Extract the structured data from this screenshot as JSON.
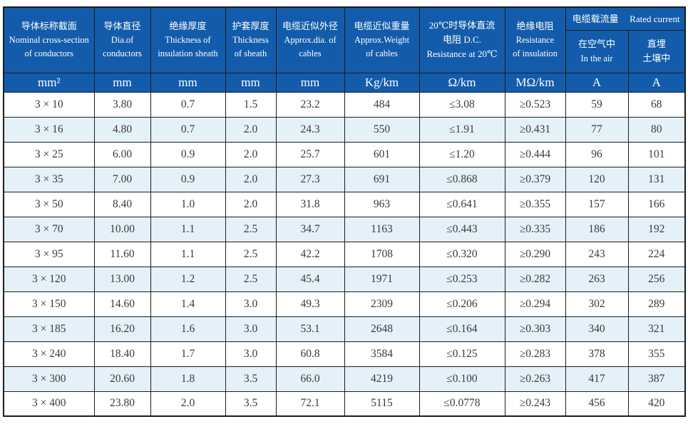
{
  "colors": {
    "header_bg": "#135CAB",
    "header_text": "#ffffff",
    "row_alt_bg": "#E4F1F9",
    "border": "#1c1c1c",
    "cell_text": "#3a3a3a"
  },
  "table": {
    "group_header": {
      "left": "电缆载流量",
      "right": "Rated current"
    },
    "columns": [
      {
        "name": "nominal-cross-section",
        "grouped": false,
        "lines": [
          "导体标称截面",
          "Nominal cross-section",
          "of conductors"
        ],
        "unit": "mm²"
      },
      {
        "name": "conductor-diameter",
        "grouped": false,
        "lines": [
          "导体直径",
          "Dia.of",
          "conductors"
        ],
        "unit": "mm"
      },
      {
        "name": "insulation-thickness",
        "grouped": false,
        "lines": [
          "绝缘厚度",
          "Thickness of",
          "insulation sheath"
        ],
        "unit": "mm"
      },
      {
        "name": "sheath-thickness",
        "grouped": false,
        "lines": [
          "护套厚度",
          "Thickness",
          "of sheath"
        ],
        "unit": "mm"
      },
      {
        "name": "approx-outer-diameter",
        "grouped": false,
        "lines": [
          "电缆近似外径",
          "Approx.dia. of",
          "cables"
        ],
        "unit": "mm"
      },
      {
        "name": "approx-weight",
        "grouped": false,
        "lines": [
          "电缆近似重量",
          "Approx.Weight",
          "of cables"
        ],
        "unit": "Kg/km"
      },
      {
        "name": "dc-resistance-20c",
        "grouped": false,
        "lines": [
          "20℃时导体直流",
          "电阻 D.C.",
          "Resistance at 20℃"
        ],
        "unit": "Ω/km"
      },
      {
        "name": "insulation-resistance",
        "grouped": false,
        "lines": [
          "绝缘电阻",
          "Resistance",
          "of insulation"
        ],
        "unit": "MΩ/km"
      },
      {
        "name": "current-in-air",
        "grouped": true,
        "lines": [
          "在空气中",
          "In the air"
        ],
        "unit": "A"
      },
      {
        "name": "current-buried",
        "grouped": true,
        "lines": [
          "直埋",
          "土壤中"
        ],
        "unit": "A"
      }
    ],
    "rows": [
      [
        "3 × 10",
        "3.80",
        "0.7",
        "1.5",
        "23.2",
        "484",
        "≤3.08",
        "≥0.523",
        "59",
        "68"
      ],
      [
        "3 × 16",
        "4.80",
        "0.7",
        "2.0",
        "24.3",
        "550",
        "≤1.91",
        "≥0.431",
        "77",
        "80"
      ],
      [
        "3 × 25",
        "6.00",
        "0.9",
        "2.0",
        "25.7",
        "601",
        "≤1.20",
        "≥0.444",
        "96",
        "101"
      ],
      [
        "3 × 35",
        "7.00",
        "0.9",
        "2.0",
        "27.3",
        "691",
        "≤0.868",
        "≥0.379",
        "120",
        "131"
      ],
      [
        "3 × 50",
        "8.40",
        "1.0",
        "2.0",
        "31.8",
        "963",
        "≤0.641",
        "≥0.355",
        "157",
        "166"
      ],
      [
        "3 × 70",
        "10.00",
        "1.1",
        "2.5",
        "34.7",
        "1163",
        "≤0.443",
        "≥0.335",
        "186",
        "192"
      ],
      [
        "3 × 95",
        "11.60",
        "1.1",
        "2.5",
        "42.2",
        "1708",
        "≤0.320",
        "≥0.290",
        "243",
        "224"
      ],
      [
        "3 × 120",
        "13.00",
        "1.2",
        "2.5",
        "45.4",
        "1971",
        "≤0.253",
        "≥0.282",
        "263",
        "256"
      ],
      [
        "3 × 150",
        "14.60",
        "1.4",
        "3.0",
        "49.3",
        "2309",
        "≤0.206",
        "≥0.294",
        "302",
        "289"
      ],
      [
        "3 × 185",
        "16.20",
        "1.6",
        "3.0",
        "53.1",
        "2648",
        "≤0.164",
        "≥0.303",
        "340",
        "321"
      ],
      [
        "3 × 240",
        "18.40",
        "1.7",
        "3.0",
        "60.8",
        "3584",
        "≤0.125",
        "≥0.283",
        "378",
        "355"
      ],
      [
        "3 × 300",
        "20.60",
        "1.8",
        "3.5",
        "66.0",
        "4219",
        "≤0.100",
        "≥0.263",
        "417",
        "387"
      ],
      [
        "3 × 400",
        "23.80",
        "2.0",
        "3.5",
        "72.1",
        "5115",
        "≤0.0778",
        "≥0.243",
        "456",
        "420"
      ]
    ]
  }
}
